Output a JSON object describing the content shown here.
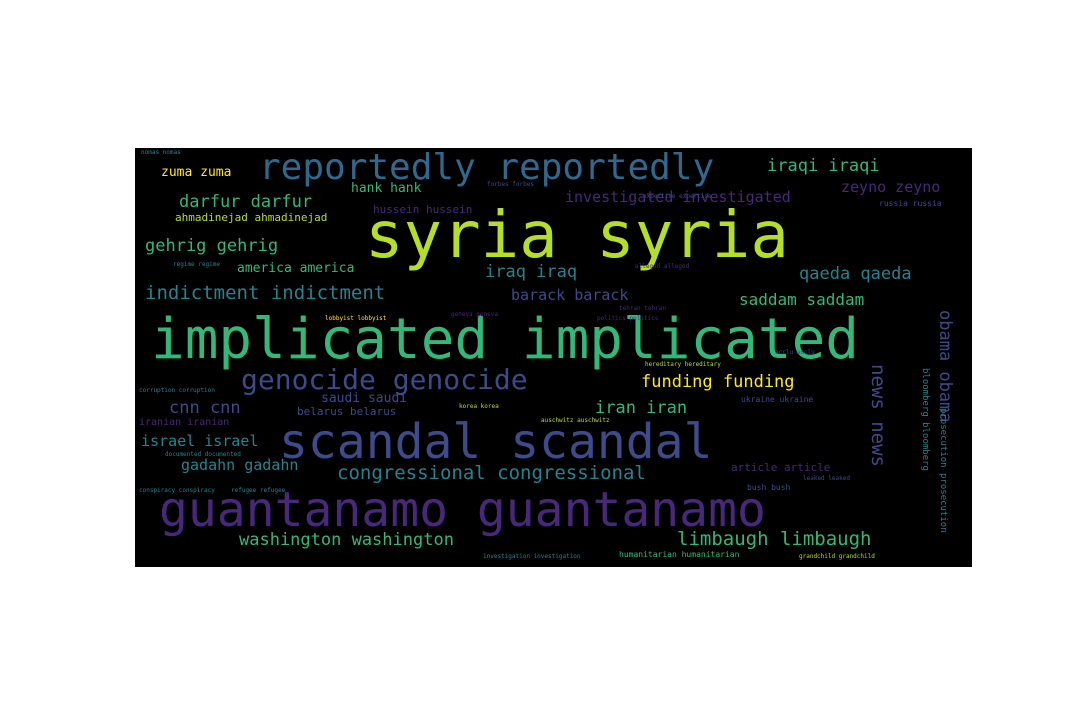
{
  "palette": {
    "yellow": "#b5de2b",
    "green": "#35b779",
    "teal": "#26828e",
    "blue": "#3e4a89",
    "purple": "#482878",
    "dark": "#31688e",
    "lime": "#fde725"
  },
  "words": [
    "syria syria",
    "implicated implicated",
    "scandal scandal",
    "guantanamo guantanamo",
    "reportedly reportedly",
    "genocide genocide",
    "iraqi iraqi",
    "zuma zuma",
    "hank hank",
    "darfur darfur",
    "investigated investigated",
    "zeyno zeyno",
    "ahmadinejad ahmadinejad",
    "hussein hussein",
    "gehrig gehrig",
    "america america",
    "iraq iraq",
    "qaeda qaeda",
    "indictment indictment",
    "barack barack",
    "saddam saddam",
    "obama obama",
    "funding funding",
    "news news",
    "cnn cnn",
    "saudi saudi",
    "belarus belarus",
    "iran iran",
    "israel israel",
    "iranian iranian",
    "gadahn gadahn",
    "congressional congressional",
    "article article",
    "washington washington",
    "limbaugh limbaugh",
    "bloomberg bloomberg",
    "prosecution prosecution",
    "ukraine ukraine",
    "russia russia",
    "bush bush",
    "humanitarian humanitarian",
    "investigation investigation",
    "grandchild grandchild",
    "nomas nomas",
    "refugee refugee",
    "conspiracy conspiracy",
    "documented documented",
    "corruption corruption",
    "auschwitz auschwitz",
    "korea korea",
    "hereditary hereditary",
    "tehran tehran",
    "politics politics",
    "geneva geneva",
    "lobbyist lobbyist",
    "alleged alleged",
    "expertise expertise",
    "regime regime",
    "forbes forbes",
    "acclu acclu",
    "leaked leaked"
  ]
}
